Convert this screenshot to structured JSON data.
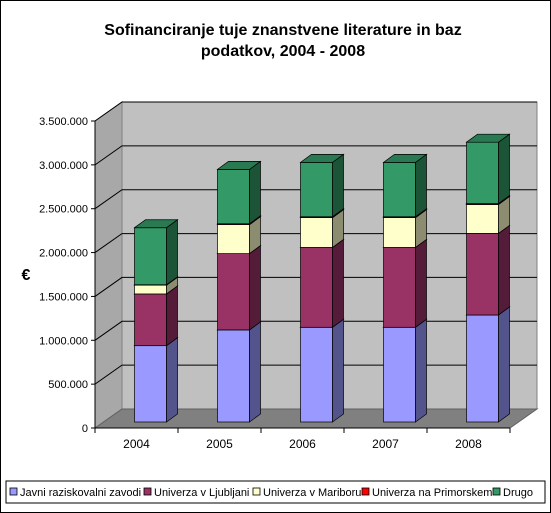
{
  "chart_data": {
    "type": "bar",
    "stacked": true,
    "three_d": true,
    "title": "Sofinanciranje tuje znanstvene literature in baz podatkov, 2004 - 2008",
    "title_lines": [
      "Sofinanciranje tuje znanstvene literature in baz",
      "podatkov, 2004 - 2008"
    ],
    "ylabel": "€",
    "xlabel": "",
    "ylim": [
      0,
      3500000
    ],
    "yticks": [
      0,
      500000,
      1000000,
      1500000,
      2000000,
      2500000,
      3000000,
      3500000
    ],
    "ytick_labels": [
      "0",
      "500.000",
      "1.000.000",
      "1.500.000",
      "2.000.000",
      "2.500.000",
      "3.000.000",
      "3.500.000"
    ],
    "categories": [
      "2004",
      "2005",
      "2006",
      "2007",
      "2008"
    ],
    "grid": true,
    "legend_position": "bottom",
    "series": [
      {
        "name": "Javni raziskovalni zavodi",
        "color": "#9999FF",
        "values": [
          870000,
          1050000,
          1080000,
          1080000,
          1220000
        ]
      },
      {
        "name": "Univerza v Ljubljani",
        "color": "#993366",
        "values": [
          590000,
          870000,
          910000,
          910000,
          930000
        ]
      },
      {
        "name": "Univerza v Mariboru",
        "color": "#FFFFCC",
        "values": [
          100000,
          330000,
          340000,
          340000,
          330000
        ]
      },
      {
        "name": "Univerza na Primorskem",
        "color": "#FF0000",
        "values": [
          5000,
          10000,
          10000,
          10000,
          10000
        ]
      },
      {
        "name": "Drugo",
        "color": "#339966",
        "values": [
          650000,
          620000,
          620000,
          620000,
          700000
        ]
      }
    ]
  }
}
